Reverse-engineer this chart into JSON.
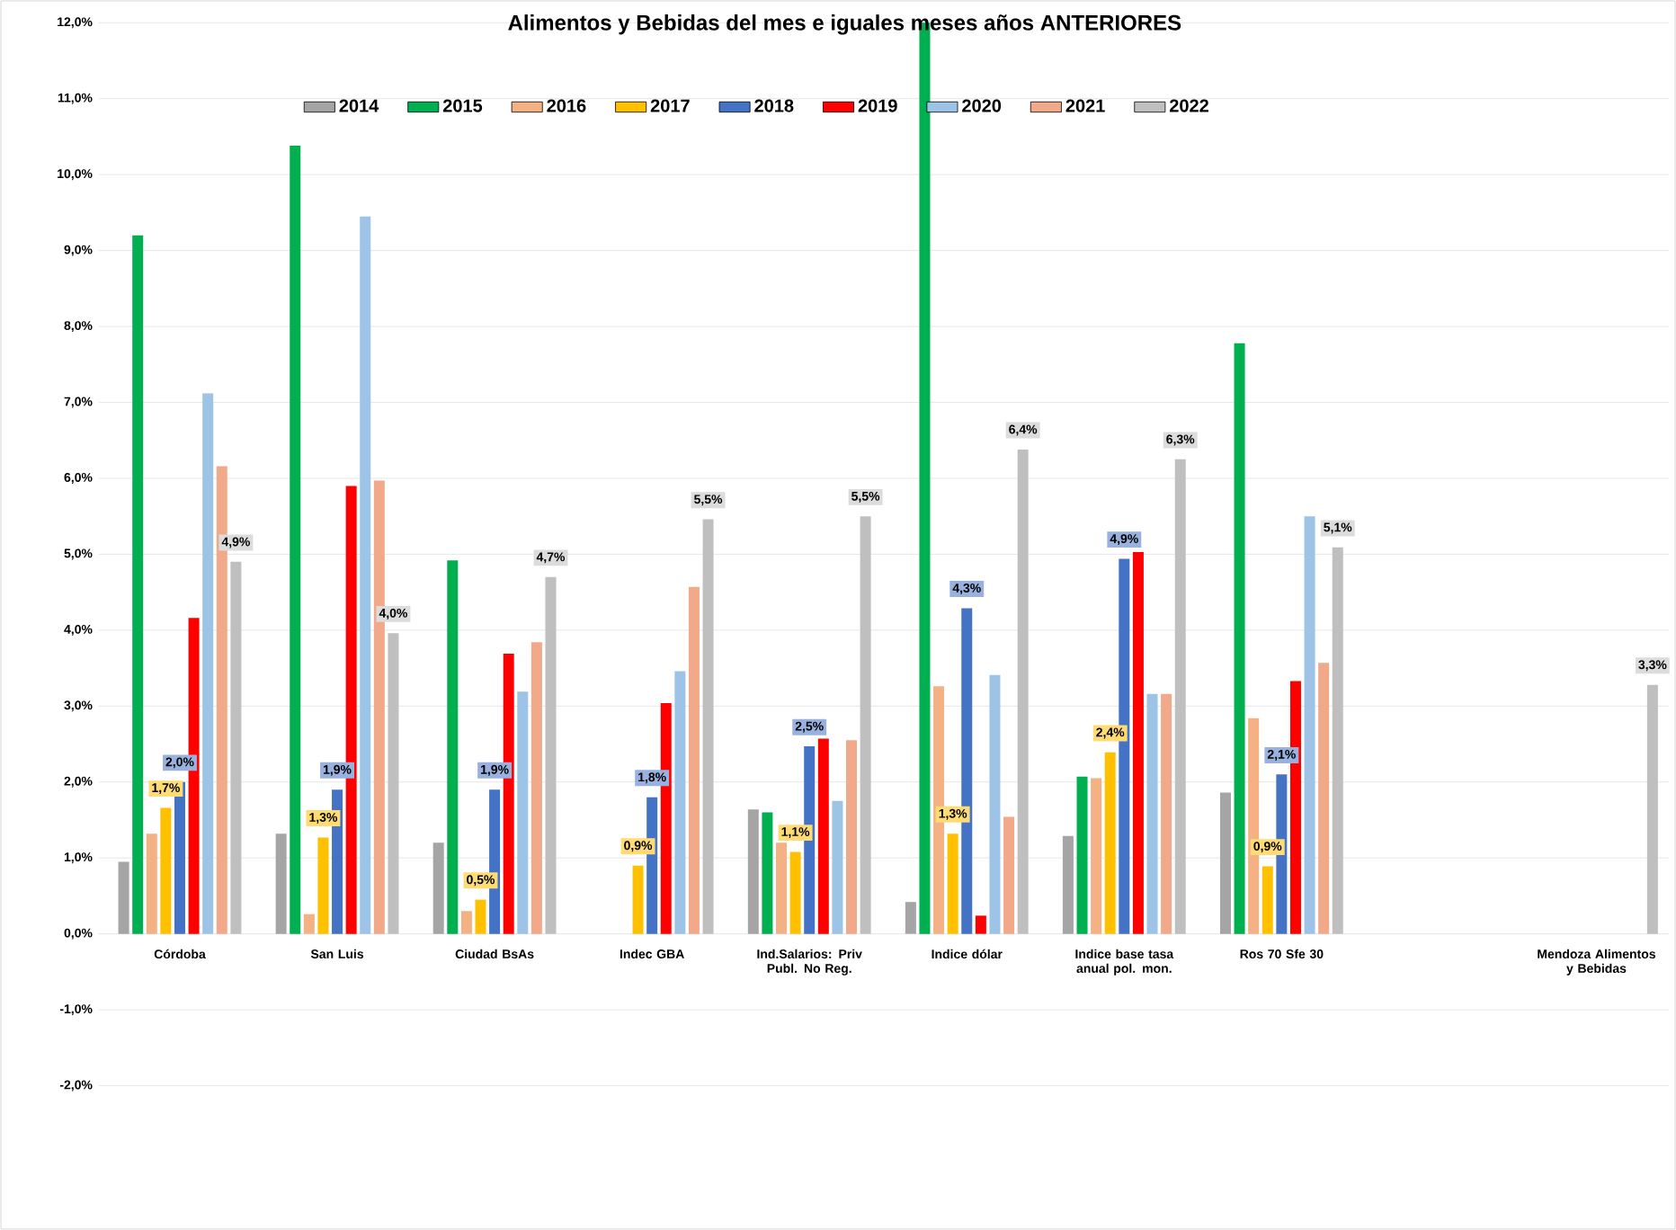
{
  "chart_data": {
    "type": "bar",
    "title": "Alimentos y Bebidas del mes e iguales meses años ANTERIORES",
    "categories": [
      "Córdoba",
      "San Luis",
      "Ciudad BsAs",
      "Indec  GBA",
      "Ind.Salarios: Priv Publ. No Reg.",
      "Indice dólar",
      "Indice base tasa anual pol. mon.",
      "Ros 70 Sfe 30",
      null,
      "Mendoza Alimentos y Bebidas"
    ],
    "series": [
      {
        "name": "2014",
        "color": "#a5a5a5",
        "values": [
          0.95,
          1.32,
          1.2,
          null,
          1.64,
          0.42,
          1.29,
          1.86,
          null,
          null
        ]
      },
      {
        "name": "2015",
        "color": "#00b050",
        "values": [
          9.2,
          10.38,
          4.92,
          null,
          1.6,
          12.0,
          2.07,
          7.78,
          null,
          null
        ]
      },
      {
        "name": "2016",
        "color": "#f4b183",
        "values": [
          1.32,
          0.26,
          0.3,
          null,
          1.2,
          3.26,
          2.05,
          2.84,
          null,
          null
        ]
      },
      {
        "name": "2017",
        "color": "#ffc000",
        "values": [
          1.66,
          1.27,
          0.45,
          0.9,
          1.08,
          1.32,
          2.39,
          0.89,
          null,
          null
        ],
        "value_labels": [
          "1,7%",
          "1,3%",
          "0,5%",
          "0,9%",
          "1,1%",
          "1,3%",
          "2,4%",
          "0,9%",
          null,
          null
        ]
      },
      {
        "name": "2018",
        "color": "#4472c4",
        "values": [
          2.0,
          1.9,
          1.9,
          1.8,
          2.47,
          4.29,
          4.94,
          2.1,
          null,
          null
        ],
        "value_labels": [
          "2,0%",
          "1,9%",
          "1,9%",
          "1,8%",
          "2,5%",
          "4,3%",
          "4,9%",
          "2,1%",
          null,
          null
        ]
      },
      {
        "name": "2019",
        "color": "#ff0000",
        "values": [
          4.16,
          5.9,
          3.69,
          3.04,
          2.57,
          0.24,
          5.03,
          3.33,
          null,
          null
        ]
      },
      {
        "name": "2020",
        "color": "#9dc3e6",
        "values": [
          7.12,
          9.45,
          3.19,
          3.46,
          1.75,
          3.41,
          3.16,
          5.5,
          null,
          null
        ]
      },
      {
        "name": "2021",
        "color": "#f2a98a",
        "values": [
          6.16,
          5.97,
          3.84,
          4.57,
          2.55,
          1.54,
          3.16,
          3.57,
          null,
          null
        ]
      },
      {
        "name": "2022",
        "color": "#bfbfbf",
        "values": [
          4.9,
          3.96,
          4.7,
          5.46,
          5.5,
          6.38,
          6.25,
          5.09,
          null,
          3.28
        ],
        "value_labels": [
          "4,9%",
          "4,0%",
          "4,7%",
          "5,5%",
          "5,5%",
          "6,4%",
          "6,3%",
          "5,1%",
          null,
          "3,3%"
        ]
      }
    ],
    "ylim": [
      -3.9,
      12.3
    ],
    "yticks": [
      {
        "value": -2,
        "label": "-2,0%"
      },
      {
        "value": -1,
        "label": "-1,0%"
      },
      {
        "value": 0,
        "label": "0,0%"
      },
      {
        "value": 1,
        "label": "1,0%"
      },
      {
        "value": 2,
        "label": "2,0%"
      },
      {
        "value": 3,
        "label": "3,0%"
      },
      {
        "value": 4,
        "label": "4,0%"
      },
      {
        "value": 5,
        "label": "5,0%"
      },
      {
        "value": 6,
        "label": "6,0%"
      },
      {
        "value": 7,
        "label": "7,0%"
      },
      {
        "value": 8,
        "label": "8,0%"
      },
      {
        "value": 9,
        "label": "9,0%"
      },
      {
        "value": 10,
        "label": "10,0%"
      },
      {
        "value": 11,
        "label": "11,0%"
      },
      {
        "value": 12,
        "label": "12,0%"
      }
    ],
    "grid": "y",
    "legend": "top"
  }
}
